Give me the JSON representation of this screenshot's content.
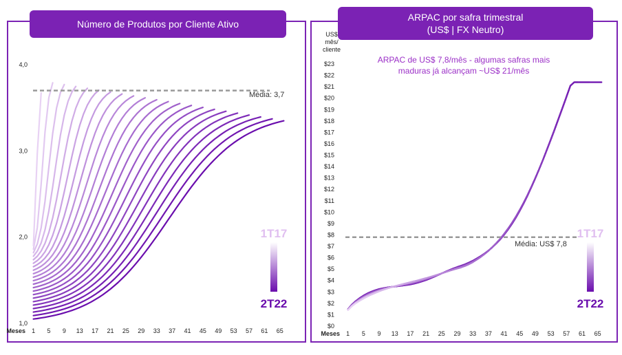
{
  "left": {
    "title": "Número de Produtos por Cliente Ativo",
    "avg_label": "Média: 3,7",
    "legend_top": "1T17",
    "legend_bottom": "2T22"
  },
  "right": {
    "title_line1": "ARPAC por safra trimestral",
    "title_line2": "(US$ | FX Neutro)",
    "y_unit": [
      "US$",
      "mês/",
      "cliente"
    ],
    "annotation_line1": "ARPAC de US$ 7,8/mês - algumas safras mais",
    "annotation_line2": "maduras já alcançam ~US$ 21/mês",
    "avg_label": "Média: US$ 7,8",
    "legend_top": "1T17",
    "legend_bottom": "2T22"
  },
  "colors": {
    "accent": "#7b22b4",
    "dark_purple": "#6a0dad",
    "light_purple": "#e4c8f2",
    "avg_line": "#999999",
    "annotation": "#9b2fc7"
  },
  "chart_data": [
    {
      "type": "line",
      "title": "Número de Produtos por Cliente Ativo",
      "xlabel": "Meses",
      "ylabel": "",
      "x_ticks": [
        1,
        5,
        9,
        13,
        17,
        21,
        25,
        29,
        33,
        37,
        41,
        45,
        49,
        53,
        57,
        61,
        65
      ],
      "y_ticks": [
        "1,0",
        "2,0",
        "3,0",
        "4,0"
      ],
      "xlim": [
        0,
        67
      ],
      "ylim": [
        1.0,
        4.0
      ],
      "average": 3.7,
      "series_legend": [
        "1T17",
        "2T22"
      ],
      "cohort_count": 22,
      "cohort_model": {
        "y_start_oldest": 1.05,
        "y_start_newest": 1.9,
        "y_plateau_oldest": 3.45,
        "y_plateau_newest": 3.9,
        "months_oldest": 66,
        "months_newest": 1
      }
    },
    {
      "type": "line",
      "title": "ARPAC por safra trimestral (US$ | FX Neutro)",
      "xlabel": "Meses",
      "ylabel": "US$ mês/ cliente",
      "x_ticks": [
        1,
        5,
        9,
        13,
        17,
        21,
        25,
        29,
        33,
        37,
        41,
        45,
        49,
        53,
        57,
        61,
        65
      ],
      "y_ticks": [
        "$0",
        "$1",
        "$2",
        "$3",
        "$4",
        "$5",
        "$6",
        "$7",
        "$8",
        "$9",
        "$10",
        "$11",
        "$12",
        "$13",
        "$14",
        "$15",
        "$16",
        "$17",
        "$18",
        "$19",
        "$20",
        "$21",
        "$22",
        "$23"
      ],
      "xlim": [
        0,
        67
      ],
      "ylim": [
        0,
        23
      ],
      "average": 7.8,
      "series_legend": [
        "1T17",
        "2T22"
      ],
      "cohort_count": 22,
      "cohort_model": {
        "y_end_oldest": 21.2,
        "y_end_newest": 1.3,
        "months_oldest": 66,
        "months_newest": 1
      }
    }
  ]
}
